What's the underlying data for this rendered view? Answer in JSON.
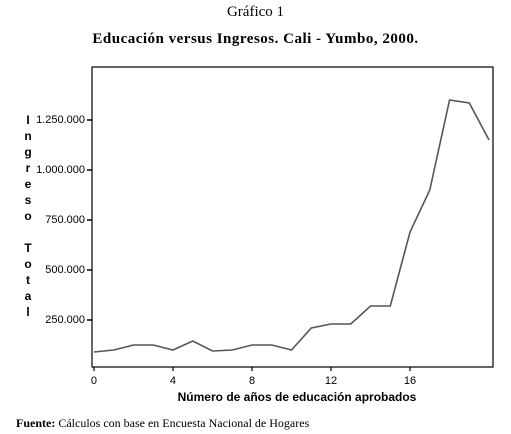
{
  "chart_data": {
    "type": "line",
    "title": "Gráfico 1",
    "subtitle": "Educación versus Ingresos. Cali - Yumbo, 2000.",
    "x_label": "Número de años de educación aprobados",
    "y_label": "Ingreso Total",
    "source_label": "Fuente:",
    "source_text": "Cálculos con base en Encuesta Nacional de Hogares",
    "x": [
      0,
      1,
      2,
      3,
      4,
      5,
      6,
      7,
      8,
      9,
      10,
      11,
      12,
      13,
      14,
      15,
      16,
      17,
      18,
      19,
      20
    ],
    "series": [
      {
        "color": "#555555",
        "values": [
          90000,
          100000,
          125000,
          125000,
          100000,
          145000,
          95000,
          100000,
          125000,
          125000,
          100000,
          210000,
          230000,
          230000,
          320000,
          320000,
          690000,
          900000,
          1350000,
          1335000,
          1150000
        ]
      }
    ],
    "xlim": [
      -0.1,
      20.2
    ],
    "xticks": [
      0,
      4,
      8,
      12,
      16
    ],
    "ylim": [
      15000,
      1515000
    ],
    "yticks": [
      {
        "value": 250000,
        "label": "250.000"
      },
      {
        "value": 500000,
        "label": "500.000"
      },
      {
        "value": 750000,
        "label": "750.000"
      },
      {
        "value": 1000000,
        "label": "1.000.000"
      },
      {
        "value": 1250000,
        "label": "1.250.000"
      }
    ]
  }
}
